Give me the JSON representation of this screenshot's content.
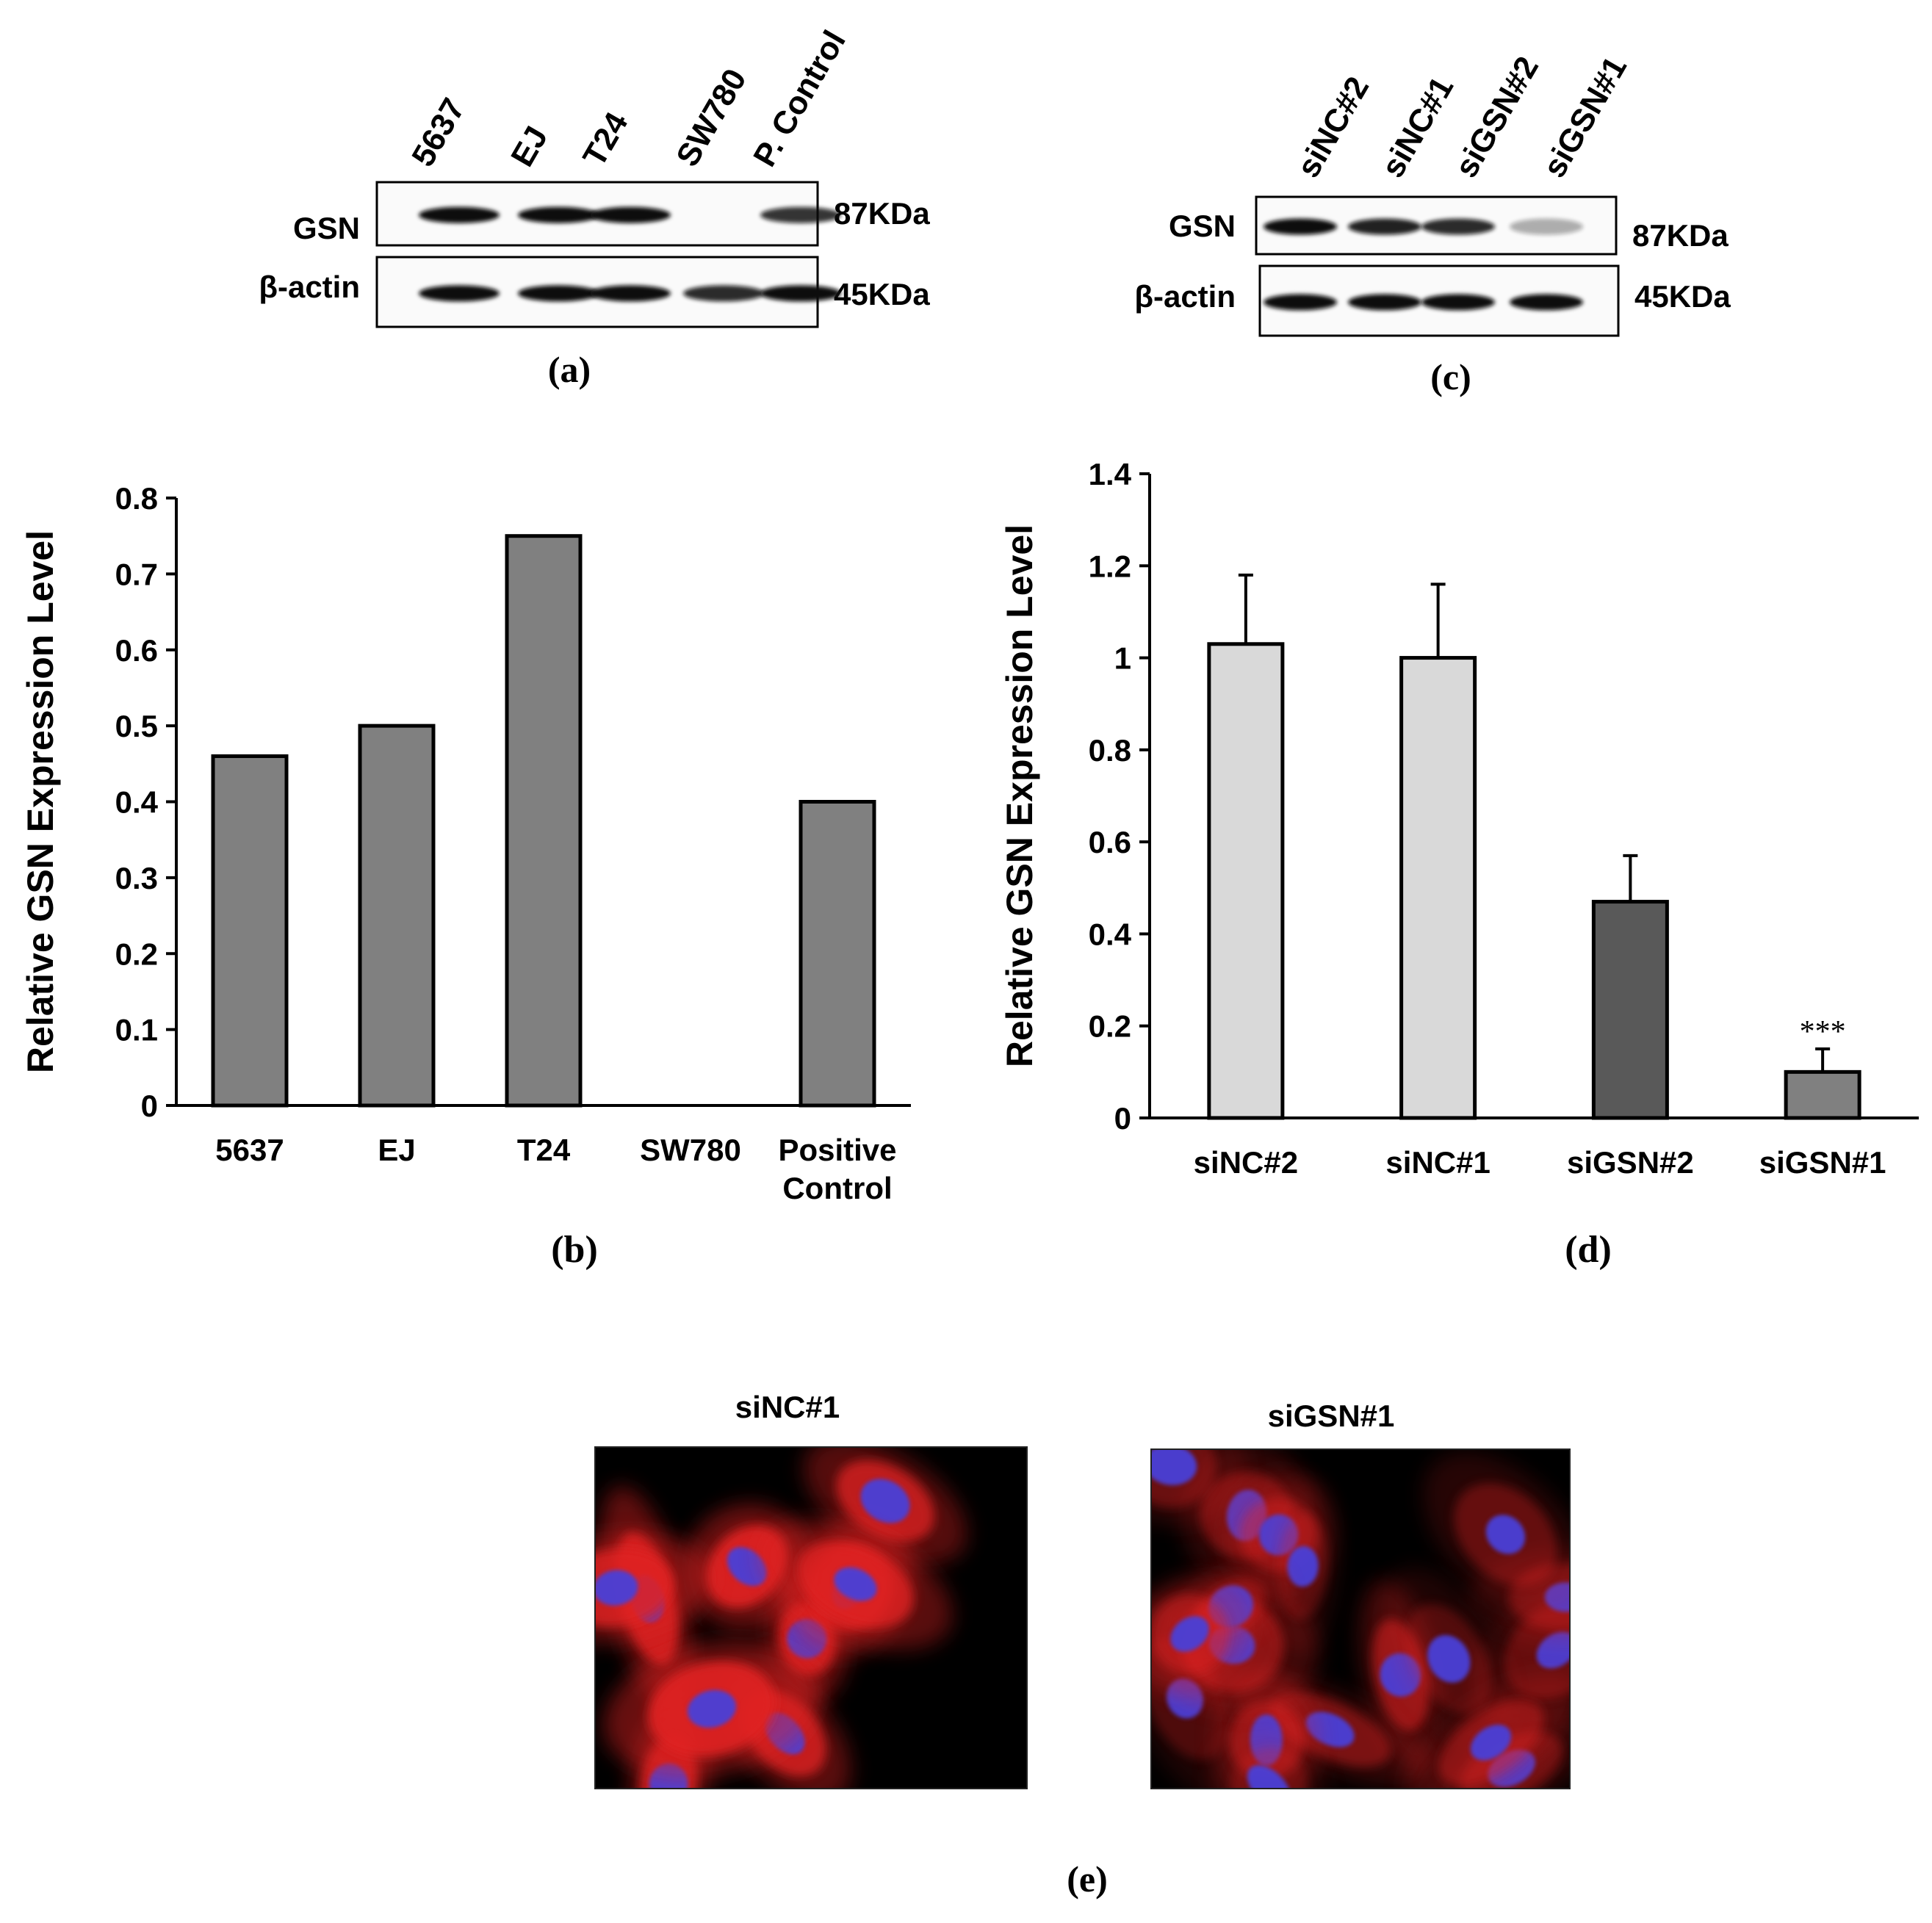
{
  "panel_a": {
    "caption": "(a)",
    "lanes": [
      "5637",
      "EJ",
      "T24",
      "SW780",
      "P. Control"
    ],
    "rows": [
      {
        "protein": "GSN",
        "size": "87KDa",
        "intensity": [
          1,
          1,
          1,
          0,
          0.8
        ]
      },
      {
        "protein": "β-actin",
        "size": "45KDa",
        "intensity": [
          1,
          1,
          1,
          0.85,
          1
        ]
      }
    ]
  },
  "panel_c": {
    "caption": "(c)",
    "lanes": [
      "siNC#2",
      "siNC#1",
      "siGSN#2",
      "siGSN#1"
    ],
    "rows": [
      {
        "protein": "GSN",
        "size": "87KDa",
        "intensity": [
          1,
          0.9,
          0.85,
          0.2
        ]
      },
      {
        "protein": "β-actin",
        "size": "45KDa",
        "intensity": [
          1,
          1,
          1,
          1
        ]
      }
    ]
  },
  "panel_e": {
    "caption": "(e)",
    "images": [
      {
        "title": "siNC#1",
        "stain": "strong red cytoplasmic signal, blue nuclei"
      },
      {
        "title": "siGSN#1",
        "stain": "weak red cytoplasmic signal, blue nuclei"
      }
    ]
  },
  "colors": {
    "bar_b": "#808080",
    "bar_d_light": "#d9d9d9",
    "bar_d_dark": "#595959",
    "bar_d_mid": "#808080",
    "axis": "#000000",
    "red_signal": "#e02020",
    "nucleus": "#4a3fd8"
  },
  "chart_data": [
    {
      "id": "b",
      "type": "bar",
      "caption": "(b)",
      "categories": [
        "5637",
        "EJ",
        "T24",
        "SW780",
        "Positive Control"
      ],
      "category_lines": [
        [
          "5637"
        ],
        [
          "EJ"
        ],
        [
          "T24"
        ],
        [
          "SW780"
        ],
        [
          "Positive",
          "Control"
        ]
      ],
      "values": [
        0.46,
        0.5,
        0.75,
        0,
        0.4
      ],
      "ylabel": "Relative GSN  Expression Level",
      "ylim": [
        0,
        0.8
      ],
      "yticks": [
        "0",
        "0.1",
        "0.2",
        "0.3",
        "0.4",
        "0.5",
        "0.6",
        "0.7",
        "0.8"
      ],
      "grid": false
    },
    {
      "id": "d",
      "type": "bar",
      "caption": "(d)",
      "categories": [
        "siNC#2",
        "siNC#1",
        "siGSN#2",
        "siGSN#1"
      ],
      "values": [
        1.03,
        1.0,
        0.47,
        0.1
      ],
      "errors": [
        0.15,
        0.16,
        0.1,
        0.05
      ],
      "annotations": [
        "",
        "",
        "",
        "***"
      ],
      "ylabel": "Relative GSN  Expression Level",
      "ylim": [
        0,
        1.4
      ],
      "yticks": [
        "0",
        "0.2",
        "0.4",
        "0.6",
        "0.8",
        "1",
        "1.2",
        "1.4"
      ],
      "grid": false
    }
  ]
}
